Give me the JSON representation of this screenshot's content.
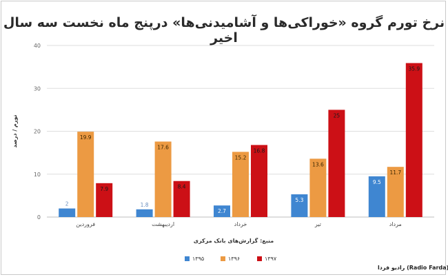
{
  "chart_data": {
    "type": "bar",
    "title": "نرخ تورم گروه «خوراکی‌ها و آشامیدنی‌ها» درپنج ماه نخست سه سال اخیر",
    "xlabel": "منبع: گزارش‌های بانک مرکزی",
    "ylabel": "تورم / درصد",
    "ylim": [
      0,
      40
    ],
    "yticks": [
      "0",
      "10",
      "20",
      "30",
      "40"
    ],
    "grid": true,
    "legend_position": "bottom",
    "categories": [
      "فروردین",
      "اردیبهشت",
      "خرداد",
      "تیر",
      "مرداد"
    ],
    "series": [
      {
        "name": "۱۳۹۵",
        "color": "#3f86d1",
        "values": [
          2,
          1.8,
          2.7,
          5.3,
          9.5
        ],
        "labels": [
          "2",
          "1.8",
          "2.7",
          "5.3",
          "9.5"
        ]
      },
      {
        "name": "۱۳۹۶",
        "color": "#ec9a43",
        "values": [
          19.9,
          17.6,
          15.2,
          13.6,
          11.7
        ],
        "labels": [
          "19.9",
          "17.6",
          "15.2",
          "13.6",
          "11.7"
        ]
      },
      {
        "name": "۱۳۹۷",
        "color": "#cc1016",
        "values": [
          7.9,
          8.4,
          16.8,
          25,
          35.9
        ],
        "labels": [
          "7.9",
          "8.4",
          "16.8",
          "25",
          "35.9"
        ]
      }
    ]
  },
  "credit": "رادیو فردا (Radio Farda)"
}
